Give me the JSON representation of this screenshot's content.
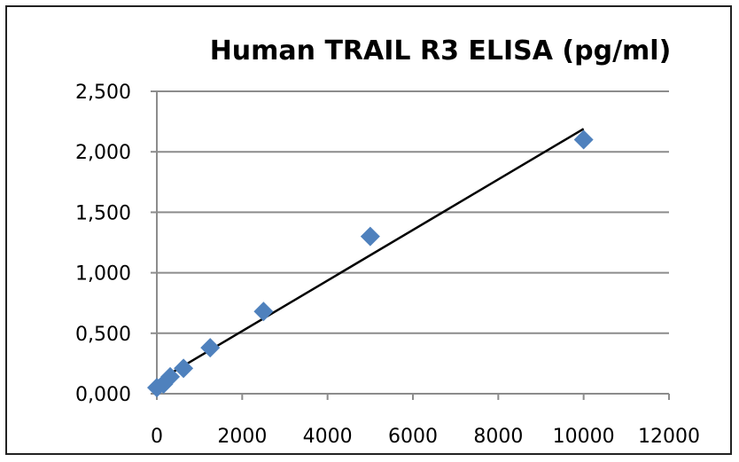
{
  "chart_data": {
    "type": "scatter",
    "title": "Human TRAIL R3 ELISA (pg/ml)",
    "xlabel": "",
    "ylabel": "",
    "xlim": [
      0,
      12000
    ],
    "ylim": [
      0,
      2.5
    ],
    "x_ticks": [
      0,
      2000,
      4000,
      6000,
      8000,
      10000,
      12000
    ],
    "x_tick_labels": [
      "0",
      "2000",
      "4000",
      "6000",
      "8000",
      "10000",
      "12000"
    ],
    "y_ticks": [
      0,
      0.5,
      1.0,
      1.5,
      2.0,
      2.5
    ],
    "y_tick_labels": [
      "0,000",
      "0,500",
      "1,000",
      "1,500",
      "2,000",
      "2,500"
    ],
    "grid": "horizontal",
    "legend": "none",
    "marker_color": "#4F81BD",
    "trendline_color": "#000000",
    "series": [
      {
        "points": [
          {
            "x": 0,
            "y": 0.05
          },
          {
            "x": 156,
            "y": 0.08
          },
          {
            "x": 313,
            "y": 0.14
          },
          {
            "x": 625,
            "y": 0.21
          },
          {
            "x": 1250,
            "y": 0.38
          },
          {
            "x": 2500,
            "y": 0.68
          },
          {
            "x": 5000,
            "y": 1.3
          },
          {
            "x": 10000,
            "y": 2.1
          }
        ]
      }
    ],
    "trendline": {
      "type": "linear",
      "x": [
        0,
        10000
      ],
      "y": [
        0.1,
        2.19
      ]
    }
  }
}
